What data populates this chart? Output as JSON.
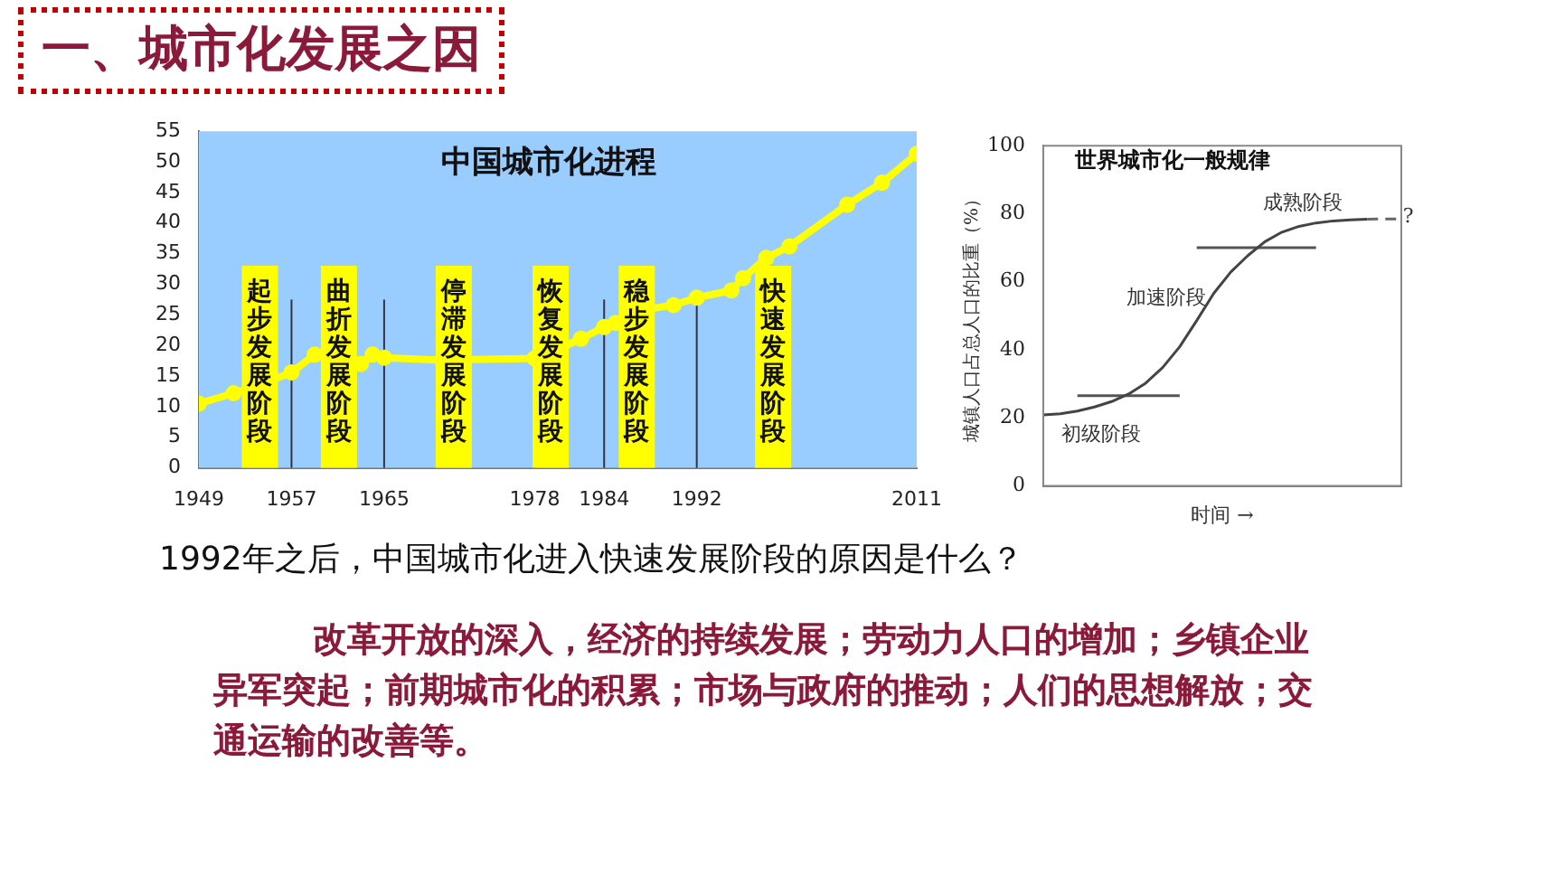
{
  "chart_data": [
    {
      "type": "line",
      "title": "中国城市化进程",
      "x": [
        1949,
        1952,
        1955,
        1957,
        1959,
        1961,
        1962,
        1963,
        1964,
        1965,
        1970,
        1978,
        1980,
        1982,
        1984,
        1985,
        1986,
        1987,
        1990,
        1992,
        1995,
        1996,
        1998,
        2000,
        2005,
        2008,
        2011
      ],
      "series": [
        {
          "color": "#ffff00",
          "values": [
            10.5,
            12.2,
            14.1,
            15.6,
            18.5,
            17,
            16,
            17,
            18.5,
            18,
            17.6,
            17.9,
            19.4,
            21.1,
            23,
            23.7,
            24.9,
            25.7,
            26.6,
            27.8,
            29,
            31,
            34.3,
            36.2,
            43,
            46.6,
            51.3
          ]
        }
      ],
      "xlim": [
        1949,
        2011
      ],
      "xticks": [
        1949,
        1957,
        1965,
        1978,
        1984,
        1992,
        2011
      ],
      "ylim": [
        0,
        55
      ],
      "yticks": [
        0,
        5,
        10,
        15,
        20,
        25,
        30,
        35,
        40,
        45,
        50,
        55
      ],
      "grid": false,
      "legend": false,
      "marker": "circle",
      "ref_lines": [
        {
          "axis": "x",
          "value": 1957
        },
        {
          "axis": "x",
          "value": 1965
        },
        {
          "axis": "x",
          "value": 1978
        },
        {
          "axis": "x",
          "value": 1984
        },
        {
          "axis": "x",
          "value": 1992
        }
      ],
      "annotations": [
        "起步发展阶段",
        "曲折发展阶段",
        "停滞发展阶段",
        "恢复发展阶段",
        "稳步发展阶段",
        "快速发展阶段",
        "一、城市化发展之因",
        "1992年之后，中国城市化进入快速发展阶段的原因是什么？",
        "改革开放的深入，经济的持续发展；劳动力人口的增加；乡镇企业异军突起；前期城市化的积累；市场与政府的推动；人们的思想解放；交通运输的改善等。"
      ]
    },
    {
      "type": "line",
      "title": "世界城市化一般规律",
      "xlabel": "时间 →",
      "ylabel": "城镇人口占总人口的比重（%）",
      "categories": [
        null,
        null,
        null,
        null,
        null,
        null,
        null,
        null,
        null,
        null,
        null,
        null,
        null,
        null,
        null,
        null,
        null,
        null,
        null,
        null,
        null,
        null
      ],
      "series": [
        {
          "color": "#444444",
          "values": [
            20.9,
            21.2,
            22,
            23.2,
            24.8,
            27,
            30.2,
            34.8,
            40.9,
            48.6,
            56.6,
            62.9,
            67.7,
            71.8,
            74.6,
            76.3,
            77.3,
            77.9,
            78.2,
            78.4,
            null,
            null
          ]
        },
        {
          "color": "#666666",
          "line_style": "dashed",
          "values": [
            null,
            null,
            null,
            null,
            null,
            null,
            null,
            null,
            null,
            null,
            null,
            null,
            null,
            null,
            null,
            null,
            null,
            null,
            null,
            78.4,
            78.5,
            78.5
          ]
        },
        {
          "color": "#555555",
          "values": [
            null,
            null,
            26.5,
            26.5,
            26.5,
            26.5,
            26.5,
            26.5,
            26.5,
            null,
            null,
            null,
            null,
            null,
            null,
            null,
            null,
            null,
            null,
            null,
            null,
            null
          ]
        },
        {
          "color": "#555555",
          "values": [
            null,
            null,
            null,
            null,
            null,
            null,
            null,
            null,
            null,
            70,
            70,
            70,
            70,
            70,
            70,
            70,
            70,
            null,
            null,
            null,
            null,
            null
          ]
        }
      ],
      "ylim": [
        0,
        100
      ],
      "yticks": [
        0,
        20,
        40,
        60,
        80,
        100
      ],
      "grid": false,
      "legend": false,
      "marker": "none",
      "tick_labels": "y",
      "annotations": [
        "初级阶段",
        "加速阶段",
        "成熟阶段",
        "?"
      ]
    }
  ]
}
